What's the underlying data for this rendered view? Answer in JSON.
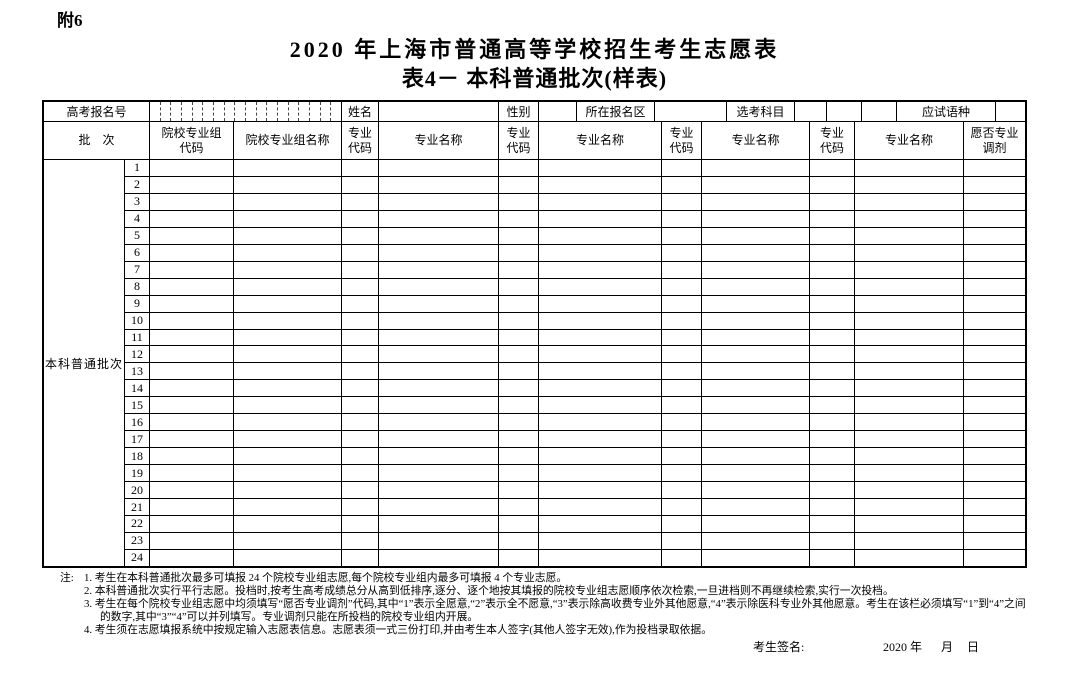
{
  "page": {
    "attachment_label": "附6",
    "title": "2020 年上海市普通高等学校招生考生志愿表",
    "subtitle": "表4－ 本科普通批次(样表)"
  },
  "info_row": {
    "exam_id_label": "高考报名号",
    "exam_id_digit_boxes": 18,
    "name_label": "姓名",
    "gender_label": "性别",
    "district_label": "所在报名区",
    "subjects_label": "选考科目",
    "subject_boxes": 3,
    "language_label": "应试语种"
  },
  "columns": {
    "batch": "批　次",
    "group_code": "院校专业组\n代码",
    "group_name": "院校专业组名称",
    "major_code": "专业\n代码",
    "major_name": "专业名称",
    "adjust": "愿否专业\n调剂",
    "major_pairs": 4
  },
  "body": {
    "batch_label": "本科普通批次",
    "row_count": 24,
    "group_code_boxes": 5,
    "major_code_boxes": 2
  },
  "notes": {
    "prefix": "注:",
    "items": [
      "1. 考生在本科普通批次最多可填报 24 个院校专业组志愿,每个院校专业组内最多可填报 4 个专业志愿。",
      "2. 本科普通批次实行平行志愿。投档时,按考生高考成绩总分从高到低排序,逐分、逐个地按其填报的院校专业组志愿顺序依次检索,一旦进档则不再继续检索,实行一次投档。",
      "3. 考生在每个院校专业组志愿中均须填写“愿否专业调剂”代码,其中“1”表示全愿意,“2”表示全不愿意,“3”表示除高收费专业外其他愿意,“4”表示除医科专业外其他愿意。考生在该栏必须填写“1”到“4”之间的数字,其中“3”“4”可以并列填写。专业调剂只能在所投档的院校专业组内开展。",
      "4. 考生须在志愿填报系统中按规定输入志愿表信息。志愿表须一式三份打印,并由考生本人签字(其他人签字无效),作为投档录取依据。"
    ]
  },
  "signature": {
    "label": "考生签名:",
    "year": "2020 年",
    "month": "月",
    "day": "日"
  }
}
